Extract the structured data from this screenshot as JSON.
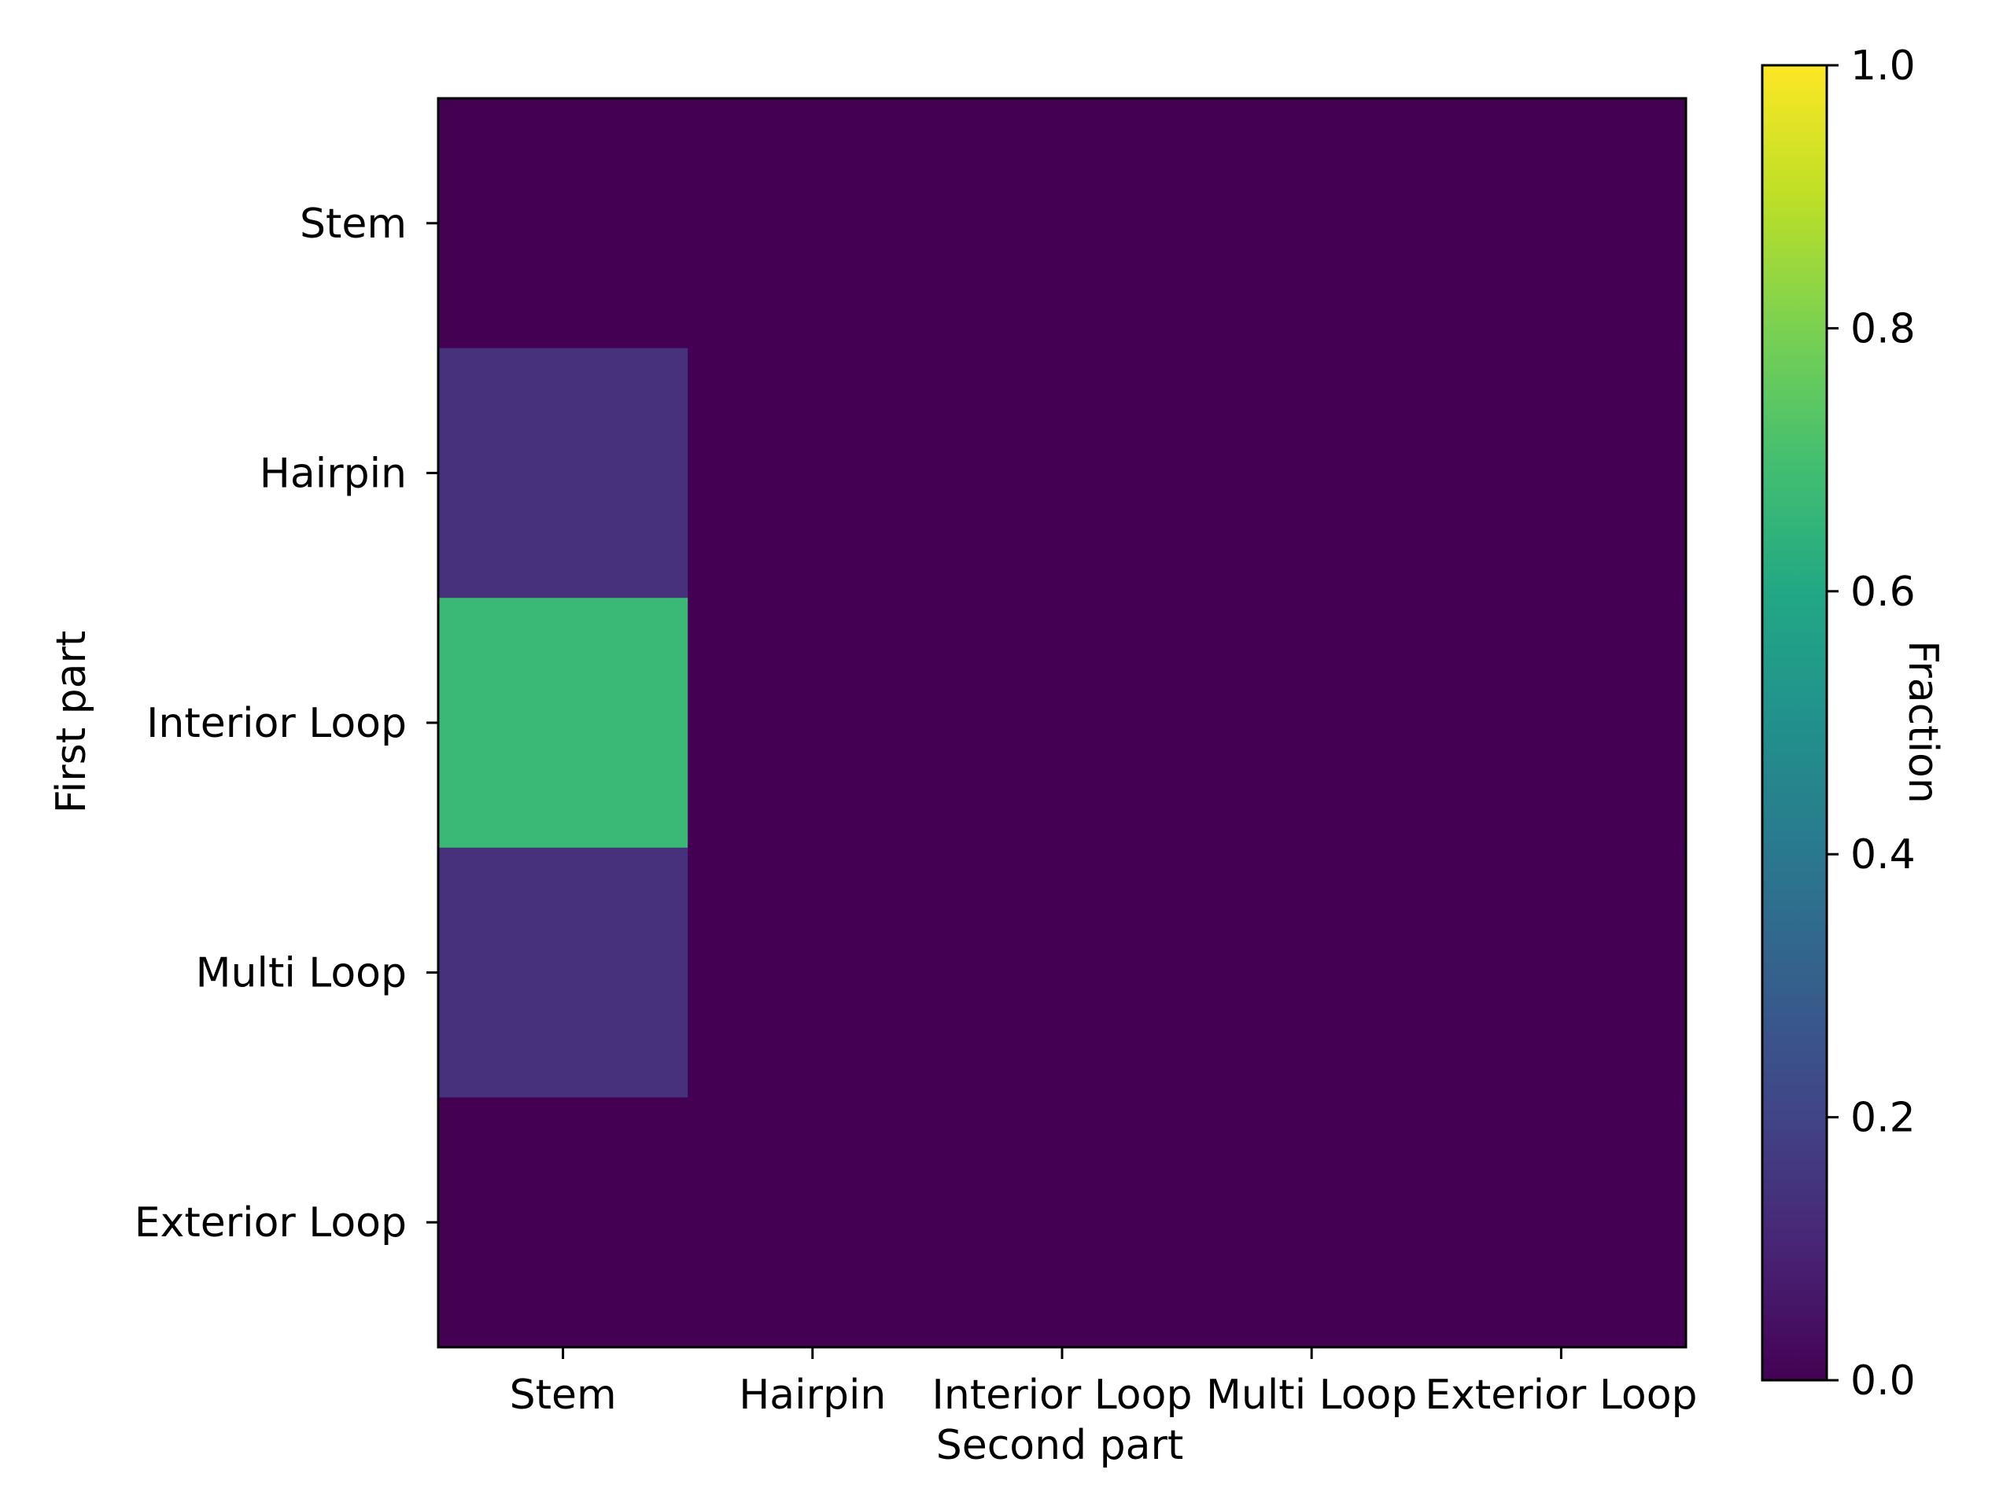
{
  "chart_data": {
    "type": "heatmap",
    "title": "",
    "xlabel": "Second part",
    "ylabel": "First part",
    "x_categories": [
      "Stem",
      "Hairpin",
      "Interior Loop",
      "Multi Loop",
      "Exterior Loop"
    ],
    "y_categories": [
      "Stem",
      "Hairpin",
      "Interior Loop",
      "Multi Loop",
      "Exterior Loop"
    ],
    "values": [
      [
        0.0,
        0.0,
        0.0,
        0.0,
        0.0
      ],
      [
        0.14,
        0.0,
        0.0,
        0.0,
        0.0
      ],
      [
        0.67,
        0.0,
        0.0,
        0.0,
        0.0
      ],
      [
        0.14,
        0.0,
        0.0,
        0.0,
        0.0
      ],
      [
        0.0,
        0.0,
        0.0,
        0.0,
        0.0
      ]
    ],
    "colormap": "viridis",
    "colorbar": {
      "label": "Fraction",
      "range": [
        0.0,
        1.0
      ],
      "ticks": [
        0.0,
        0.2,
        0.4,
        0.6,
        0.8,
        1.0
      ],
      "tick_labels": [
        "0.0",
        "0.2",
        "0.4",
        "0.6",
        "0.8",
        "1.0"
      ],
      "placement": "right"
    },
    "grid": false
  }
}
